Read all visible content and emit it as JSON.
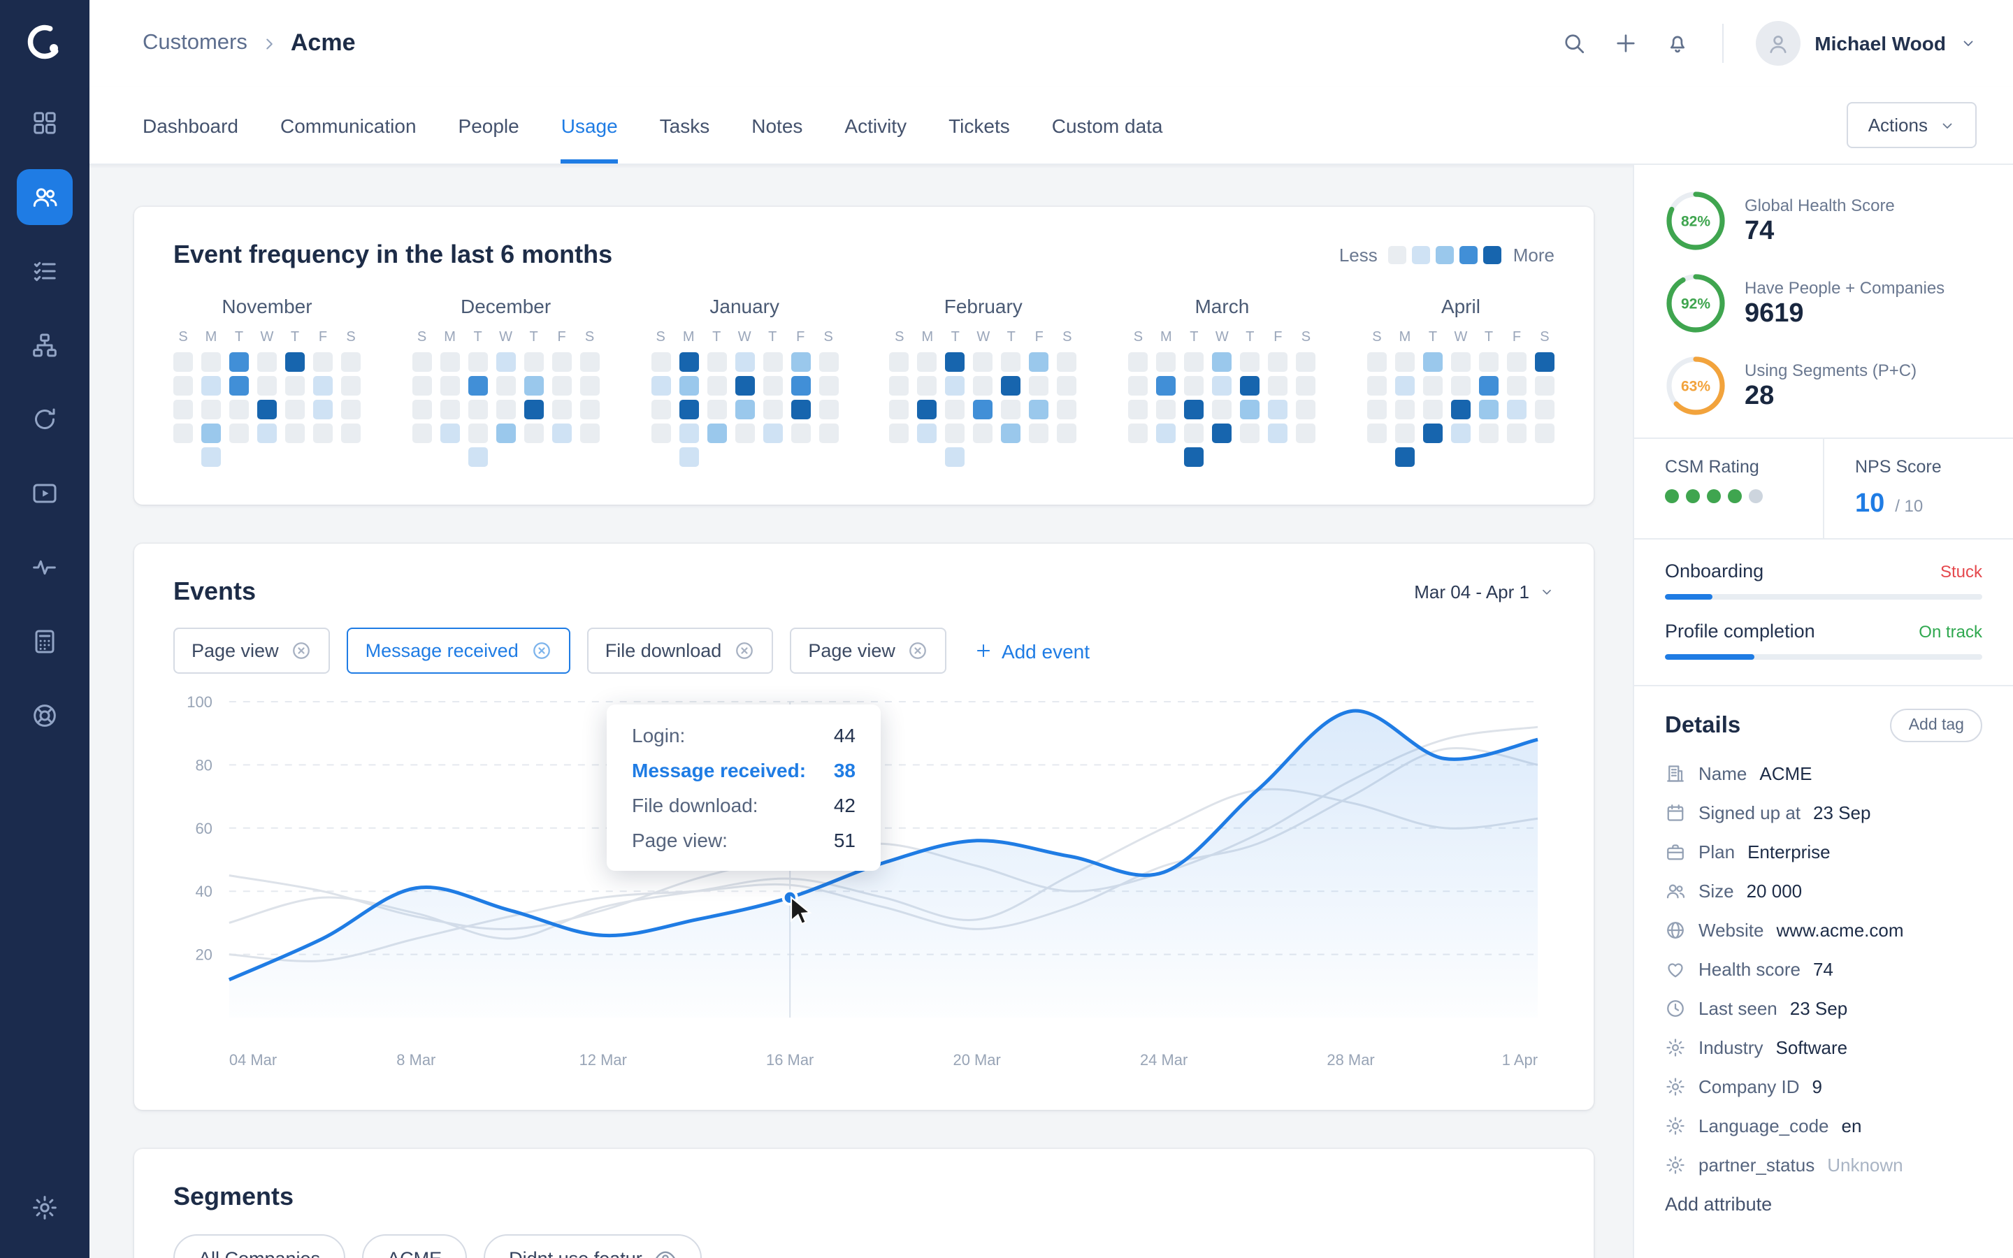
{
  "header": {
    "breadcrumb": {
      "parent": "Customers",
      "current": "Acme"
    },
    "user_name": "Michael Wood"
  },
  "sidebar": {
    "items": [
      {
        "icon": "grid",
        "name": "dashboard"
      },
      {
        "icon": "users",
        "name": "customers",
        "active": true
      },
      {
        "icon": "checklist",
        "name": "tasks"
      },
      {
        "icon": "tree",
        "name": "segments"
      },
      {
        "icon": "sync",
        "name": "sync"
      },
      {
        "icon": "play",
        "name": "playbooks"
      },
      {
        "icon": "pulse",
        "name": "health"
      },
      {
        "icon": "calc",
        "name": "billing"
      },
      {
        "icon": "lifebuoy",
        "name": "support"
      }
    ],
    "bottom": {
      "icon": "gear",
      "name": "settings"
    }
  },
  "tabs": {
    "items": [
      {
        "label": "Dashboard"
      },
      {
        "label": "Communication"
      },
      {
        "label": "People"
      },
      {
        "label": "Usage",
        "active": true
      },
      {
        "label": "Tasks"
      },
      {
        "label": "Notes"
      },
      {
        "label": "Activity"
      },
      {
        "label": "Tickets"
      },
      {
        "label": "Custom data"
      }
    ],
    "actions_label": "Actions"
  },
  "chart_data": [
    {
      "type": "heatmap",
      "title": "Event frequency in the last 6 months",
      "legend": {
        "less": "Less",
        "more": "More"
      },
      "day_headers": [
        "S",
        "M",
        "T",
        "W",
        "T",
        "F",
        "S"
      ],
      "levels": [
        "#e9edf1",
        "#cfe2f4",
        "#9ac8ec",
        "#418fd7",
        "#1765ae"
      ],
      "months": [
        {
          "name": "November",
          "rows": [
            [
              0,
              0,
              3,
              0,
              4,
              0,
              0
            ],
            [
              0,
              1,
              3,
              0,
              0,
              1,
              0
            ],
            [
              0,
              0,
              0,
              4,
              0,
              1,
              0
            ],
            [
              0,
              2,
              0,
              1,
              0,
              0,
              0
            ],
            [
              -1,
              1,
              -1,
              -1,
              -1,
              -1,
              -1
            ]
          ]
        },
        {
          "name": "December",
          "rows": [
            [
              0,
              0,
              0,
              1,
              0,
              0,
              0
            ],
            [
              0,
              0,
              3,
              0,
              2,
              0,
              0
            ],
            [
              0,
              0,
              0,
              0,
              4,
              0,
              0
            ],
            [
              0,
              1,
              0,
              2,
              0,
              1,
              0
            ],
            [
              -1,
              -1,
              1,
              -1,
              -1,
              -1,
              -1
            ]
          ]
        },
        {
          "name": "January",
          "rows": [
            [
              0,
              4,
              0,
              1,
              0,
              2,
              0
            ],
            [
              1,
              2,
              0,
              4,
              0,
              3,
              0
            ],
            [
              0,
              4,
              0,
              2,
              0,
              4,
              0
            ],
            [
              0,
              1,
              2,
              0,
              1,
              0,
              0
            ],
            [
              -1,
              1,
              -1,
              -1,
              -1,
              -1,
              -1
            ]
          ]
        },
        {
          "name": "February",
          "rows": [
            [
              0,
              0,
              4,
              0,
              0,
              2,
              0
            ],
            [
              0,
              0,
              1,
              0,
              4,
              0,
              0
            ],
            [
              0,
              4,
              0,
              3,
              0,
              2,
              0
            ],
            [
              0,
              1,
              0,
              0,
              2,
              0,
              0
            ],
            [
              -1,
              -1,
              1,
              -1,
              -1,
              -1,
              -1
            ]
          ]
        },
        {
          "name": "March",
          "rows": [
            [
              0,
              0,
              0,
              2,
              0,
              0,
              0
            ],
            [
              0,
              3,
              0,
              1,
              4,
              0,
              0
            ],
            [
              0,
              0,
              4,
              0,
              2,
              1,
              0
            ],
            [
              0,
              1,
              0,
              4,
              0,
              1,
              0
            ],
            [
              -1,
              -1,
              4,
              -1,
              -1,
              -1,
              -1
            ]
          ]
        },
        {
          "name": "April",
          "rows": [
            [
              0,
              0,
              2,
              0,
              0,
              0,
              4
            ],
            [
              0,
              1,
              0,
              0,
              3,
              0,
              0
            ],
            [
              0,
              0,
              0,
              4,
              2,
              1,
              0
            ],
            [
              0,
              0,
              4,
              1,
              0,
              0,
              0
            ],
            [
              -1,
              4,
              -1,
              -1,
              -1,
              -1,
              -1
            ]
          ]
        }
      ]
    },
    {
      "type": "line",
      "title": "Events",
      "x_tick_labels": [
        "04 Mar",
        "8 Mar",
        "12 Mar",
        "16 Mar",
        "20 Mar",
        "24 Mar",
        "28 Mar",
        "1 Apr"
      ],
      "ylim": [
        0,
        100
      ],
      "y_ticks": [
        20,
        40,
        60,
        80,
        100
      ],
      "grid": "dashed-horizontal",
      "series": [
        {
          "name": "Login",
          "color": "#dde2e9",
          "values": [
            30,
            38,
            33,
            25,
            35,
            40,
            44,
            38,
            31,
            45,
            60,
            72,
            68,
            60,
            63
          ]
        },
        {
          "name": "File download",
          "color": "#dde2e9",
          "values": [
            20,
            18,
            25,
            32,
            38,
            40,
            42,
            35,
            28,
            35,
            48,
            55,
            70,
            85,
            80
          ]
        },
        {
          "name": "Page view",
          "color": "#dde2e9",
          "values": [
            45,
            40,
            32,
            28,
            34,
            44,
            51,
            55,
            48,
            40,
            46,
            58,
            75,
            88,
            92
          ]
        },
        {
          "name": "Message received",
          "color": "#1f7ce4",
          "area": true,
          "values": [
            12,
            25,
            41,
            34,
            26,
            31,
            38,
            49,
            56,
            51,
            46,
            72,
            97,
            82,
            88
          ]
        }
      ],
      "hover": {
        "index": 6,
        "x_label": "16 Mar"
      }
    }
  ],
  "events": {
    "date_range": "Mar 04 - Apr 1",
    "filters": [
      {
        "label": "Page view"
      },
      {
        "label": "Message received",
        "active": true
      },
      {
        "label": "File download"
      },
      {
        "label": "Page view"
      }
    ],
    "add_event_label": "Add event",
    "tooltip": {
      "rows": [
        {
          "label": "Login:",
          "value": "44"
        },
        {
          "label": "Message received:",
          "value": "38",
          "highlight": true
        },
        {
          "label": "File download:",
          "value": "42"
        },
        {
          "label": "Page view:",
          "value": "51"
        }
      ]
    }
  },
  "segments": {
    "title": "Segments",
    "chips": [
      {
        "label": "All Companies"
      },
      {
        "label": "ACME"
      },
      {
        "label": "Didnt use featur",
        "icon": "eye"
      }
    ]
  },
  "right_panel": {
    "scores": [
      {
        "pct": 82,
        "label": "Global Health Score",
        "value": "74",
        "color": "#3fa54f"
      },
      {
        "pct": 92,
        "label": "Have People + Companies",
        "value": "9619",
        "color": "#3fa54f"
      },
      {
        "pct": 63,
        "label": "Using Segments (P+C)",
        "value": "28",
        "color": "#f2a33c"
      }
    ],
    "csm": {
      "label": "CSM Rating",
      "filled": 4,
      "total": 5
    },
    "nps": {
      "label": "NPS Score",
      "value": "10",
      "suffix": "/ 10"
    },
    "progress": [
      {
        "label": "Onboarding",
        "status": "Stuck",
        "color": "#e5484d",
        "pct": 15
      },
      {
        "label": "Profile completion",
        "status": "On track",
        "color": "#2fa84f",
        "pct": 28
      }
    ],
    "details": {
      "title": "Details",
      "add_tag_label": "Add tag",
      "rows": [
        {
          "icon": "building",
          "label": "Name",
          "value": "ACME"
        },
        {
          "icon": "calendar",
          "label": "Signed up at",
          "value": "23 Sep"
        },
        {
          "icon": "briefcase",
          "label": "Plan",
          "value": "Enterprise"
        },
        {
          "icon": "users",
          "label": "Size",
          "value": "20 000"
        },
        {
          "icon": "globe",
          "label": "Website",
          "value": "www.acme.com"
        },
        {
          "icon": "heart",
          "label": "Health score",
          "value": "74"
        },
        {
          "icon": "clock",
          "label": "Last seen",
          "value": "23 Sep"
        },
        {
          "icon": "gear",
          "label": "Industry",
          "value": "Software"
        },
        {
          "icon": "gear",
          "label": "Company ID",
          "value": "9"
        },
        {
          "icon": "gear",
          "label": "Language_code",
          "value": "en"
        },
        {
          "icon": "gear",
          "label": "partner_status",
          "value": "Unknown",
          "muted": true
        }
      ],
      "add_attribute_label": "Add attribute"
    }
  }
}
